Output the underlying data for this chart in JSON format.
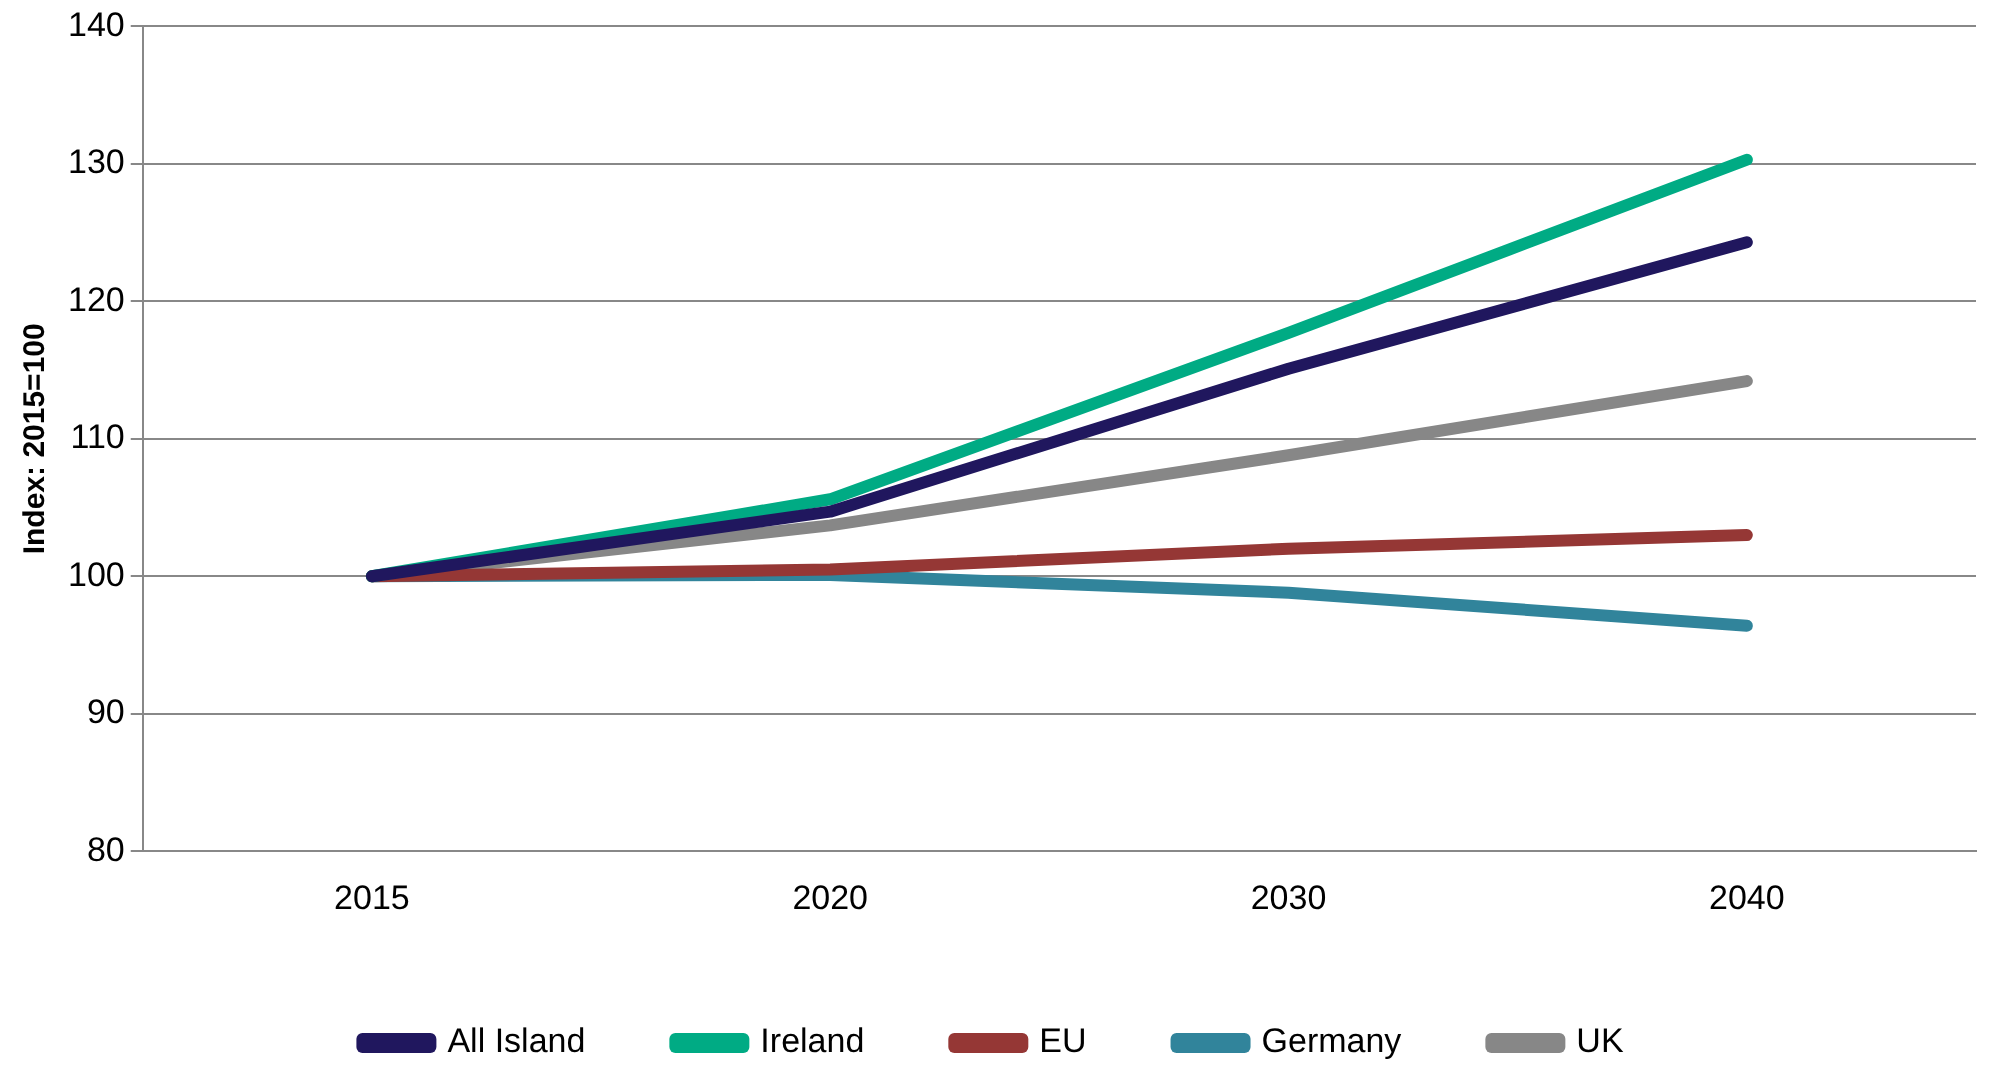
{
  "chart_data": {
    "type": "line",
    "ylabel": "Index: 2015=100",
    "categories": [
      "2015",
      "2020",
      "2030",
      "2040"
    ],
    "series": [
      {
        "name": "All Island",
        "color": "#20175e",
        "values": [
          100,
          104.7,
          115.1,
          124.3
        ]
      },
      {
        "name": "Ireland",
        "color": "#00ab84",
        "values": [
          100,
          105.6,
          117.7,
          130.3
        ]
      },
      {
        "name": "EU",
        "color": "#953735",
        "values": [
          100,
          100.5,
          102,
          103
        ]
      },
      {
        "name": "Germany",
        "color": "#31849b",
        "values": [
          100,
          100.1,
          98.8,
          96.4
        ]
      },
      {
        "name": "UK",
        "color": "#878787",
        "values": [
          100,
          103.7,
          108.8,
          114.2
        ]
      }
    ],
    "ylim": [
      80,
      140
    ],
    "yticks": [
      80,
      90,
      100,
      110,
      120,
      130,
      140
    ],
    "grid": "y",
    "legend": "bottom",
    "marker": "none",
    "line_style": "solid"
  }
}
